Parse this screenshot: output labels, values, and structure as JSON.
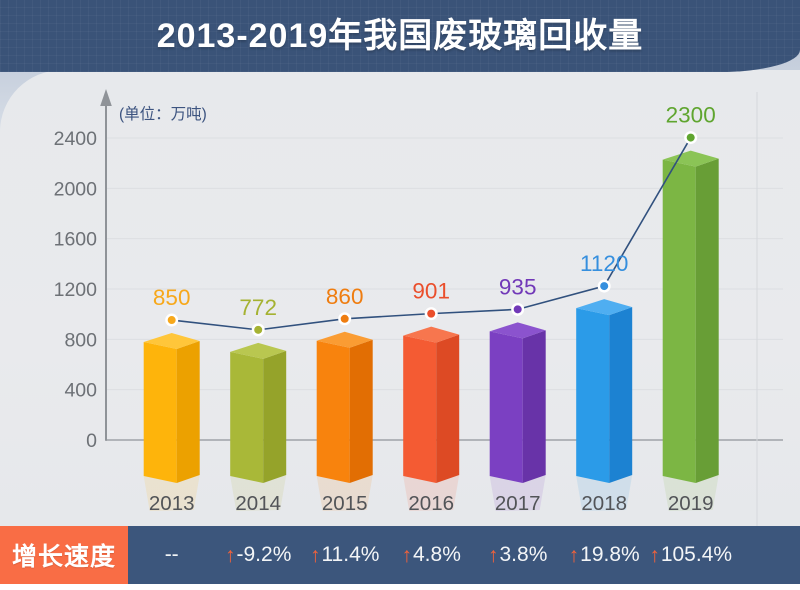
{
  "header": {
    "title": "2013-2019年我国废玻璃回收量"
  },
  "chart": {
    "unit_label": "(单位：万吨)"
  },
  "chart_data": {
    "type": "bar",
    "title": "2013-2019年我国废玻璃回收量",
    "unit": "万吨",
    "categories": [
      "2013",
      "2014",
      "2015",
      "2016",
      "2017",
      "2018",
      "2019"
    ],
    "series": [
      {
        "name": "废玻璃回收量",
        "type": "bar",
        "values": [
          850,
          772,
          860,
          901,
          935,
          1120,
          2300
        ]
      },
      {
        "name": "增长速度",
        "type": "line-overlay",
        "values": [
          "--",
          "-9.2%",
          "11.4%",
          "4.8%",
          "3.8%",
          "19.8%",
          "105.4%"
        ]
      }
    ],
    "ylim": [
      0,
      2400
    ],
    "yticks": [
      0,
      400,
      800,
      1200,
      1600,
      2000,
      2400
    ],
    "grid": true,
    "legend_position": "none",
    "bar_colors": [
      {
        "front": "#feb40b",
        "side": "#eca100",
        "top": "#ffc63a",
        "label": "#f7a81b"
      },
      {
        "front": "#a9b838",
        "side": "#95a32a",
        "top": "#b9c750",
        "label": "#a5b232"
      },
      {
        "front": "#f8830d",
        "side": "#e26e03",
        "top": "#fa9c33",
        "label": "#ef7d10"
      },
      {
        "front": "#f45b33",
        "side": "#dd4a24",
        "top": "#f7764e",
        "label": "#ea4f2c"
      },
      {
        "front": "#7b40c2",
        "side": "#6833a8",
        "top": "#8b53ce",
        "label": "#7138b8"
      },
      {
        "front": "#2b9be8",
        "side": "#1c82d2",
        "top": "#4faef1",
        "label": "#358fde"
      },
      {
        "front": "#7cb644",
        "side": "#689e36",
        "top": "#8bc456",
        "label": "#5fa52f"
      }
    ]
  },
  "growth": {
    "label": "增长速度",
    "items": [
      {
        "arrow": false,
        "text": "--"
      },
      {
        "arrow": true,
        "text": "-9.2%"
      },
      {
        "arrow": true,
        "text": "11.4%"
      },
      {
        "arrow": true,
        "text": "4.8%"
      },
      {
        "arrow": true,
        "text": "3.8%"
      },
      {
        "arrow": true,
        "text": "19.8%"
      },
      {
        "arrow": true,
        "text": "105.4%"
      }
    ]
  },
  "colors": {
    "header_bg": "#3a5378",
    "panel_bg": "#e9eaec",
    "footer_bg": "#3c567c",
    "growth_box_bg": "#f96d45",
    "arrow_orange": "#f4623a",
    "line": "#31517e",
    "gridline": "#dcdee2",
    "zero_line": "#9fa3a8",
    "axis": "#8f9398",
    "ytick_text": "#6d7176",
    "year_text": "#525458",
    "unit_text": "#3d5480"
  }
}
